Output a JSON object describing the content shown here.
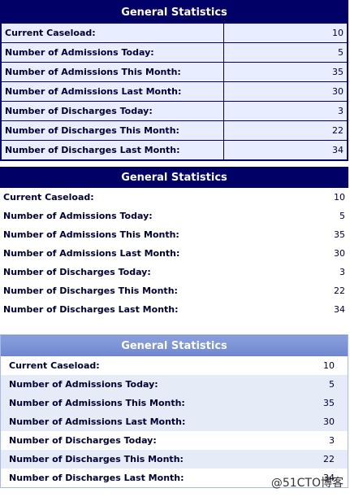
{
  "tables": [
    {
      "title": "General Statistics",
      "rows": [
        [
          "Current Caseload:",
          10
        ],
        [
          "Number of Admissions Today:",
          5
        ],
        [
          "Number of Admissions This Month:",
          35
        ],
        [
          "Number of Admissions Last Month:",
          30
        ],
        [
          "Number of Discharges Today:",
          3
        ],
        [
          "Number of Discharges This Month:",
          22
        ],
        [
          "Number of Discharges Last Month:",
          34
        ]
      ]
    },
    {
      "title": "General Statistics",
      "rows": [
        [
          "Current Caseload:",
          10
        ],
        [
          "Number of Admissions Today:",
          5
        ],
        [
          "Number of Admissions This Month:",
          35
        ],
        [
          "Number of Admissions Last Month:",
          30
        ],
        [
          "Number of Discharges Today:",
          3
        ],
        [
          "Number of Discharges This Month:",
          22
        ],
        [
          "Number of Discharges Last Month:",
          34
        ]
      ]
    },
    {
      "title": "General Statistics",
      "rows": [
        [
          "Current Caseload:",
          10
        ],
        [
          "Number of Admissions Today:",
          5
        ],
        [
          "Number of Admissions This Month:",
          35
        ],
        [
          "Number of Admissions Last Month:",
          30
        ],
        [
          "Number of Discharges Today:",
          3
        ],
        [
          "Number of Discharges This Month:",
          22
        ],
        [
          "Number of Discharges Last Month:",
          34
        ]
      ]
    }
  ],
  "watermark": "@51CTO博客"
}
